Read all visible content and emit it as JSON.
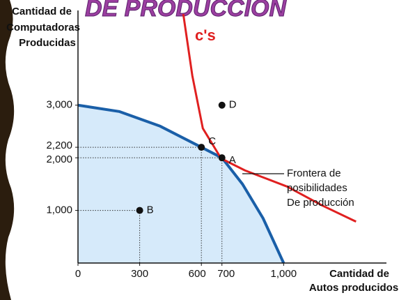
{
  "chart_data": {
    "type": "line",
    "title": "DE PRODUCCION",
    "y_label": [
      "Cantidad de",
      "Computadoras",
      "Producidas"
    ],
    "x_label": [
      "Cantidad de",
      "Autos producidos"
    ],
    "xlim": [
      0,
      1500
    ],
    "ylim": [
      0,
      4800
    ],
    "xticks": [
      0,
      300,
      600,
      700,
      {
        "value": 1000,
        "label": "1,000"
      }
    ],
    "yticks": [
      {
        "value": 1000,
        "label": "1,000"
      },
      {
        "value": 2000,
        "label": "2,000"
      },
      {
        "value": 2200,
        "label": "2,200"
      },
      {
        "value": 3000,
        "label": "3,000"
      }
    ],
    "series": [
      {
        "name": "Frontera de posibilidades De producción",
        "color": "#1a5fa8",
        "fill": "#d6eafa",
        "x": [
          0,
          200,
          400,
          600,
          700,
          800,
          900,
          1000
        ],
        "values": [
          3000,
          2880,
          2600,
          2200,
          2000,
          1500,
          850,
          0
        ]
      },
      {
        "name": "CIS",
        "color": "#e02020",
        "x": [
          512,
          556,
          607,
          696,
          812,
          1017,
          1188,
          1352
        ],
        "values": [
          4733,
          3560,
          2560,
          1987,
          1760,
          1453,
          1093,
          787
        ]
      }
    ],
    "points": [
      {
        "label": "A",
        "x": 700,
        "y": 2000,
        "guides": true
      },
      {
        "label": "B",
        "x": 300,
        "y": 1000,
        "guides": true
      },
      {
        "label": "C",
        "x": 600,
        "y": 2200,
        "guides": true
      },
      {
        "label": "D",
        "x": 700,
        "y": 3000,
        "guides": false
      }
    ],
    "annotation": [
      "Frontera de",
      "posibilidades",
      "De producción"
    ],
    "handwritten_label": "c's"
  }
}
